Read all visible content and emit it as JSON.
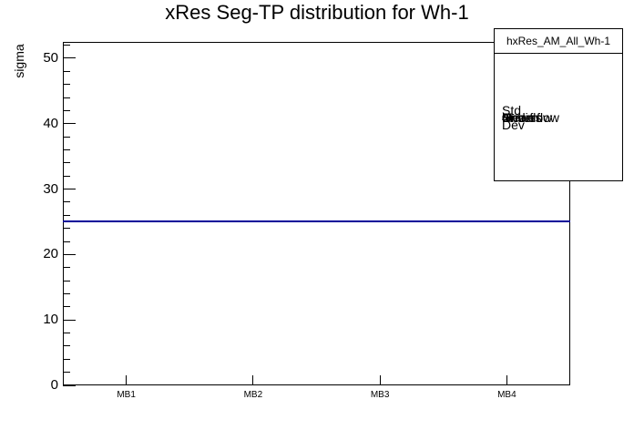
{
  "title": "xRes Seg-TP distribution for Wh-1",
  "stats_box": {
    "header": "hxRes_AM_All_Wh-1",
    "rows": [
      {
        "label": "Entries",
        "value": "4"
      },
      {
        "label": "Mean",
        "value": "0"
      },
      {
        "label": "Std Dev",
        "value": "0"
      },
      {
        "label": "Underflow",
        "value": "0"
      },
      {
        "label": "Overflow",
        "value": "0"
      }
    ]
  },
  "chart_data": {
    "type": "bar",
    "subtype": "histogram-outline",
    "title": "xRes Seg-TP distribution for Wh-1",
    "categories": [
      "MB1",
      "MB2",
      "MB3",
      "MB4"
    ],
    "values": [
      25,
      25,
      25,
      25
    ],
    "xlabel": "",
    "ylabel": "sigma",
    "ylim": [
      0,
      52.5
    ],
    "yticks": [
      0,
      10,
      20,
      30,
      40,
      50
    ],
    "yminor_step": 2,
    "grid": false,
    "legend": false,
    "line_color": "#000099",
    "axis_color": "#000000",
    "background_color": "#ffffff"
  }
}
